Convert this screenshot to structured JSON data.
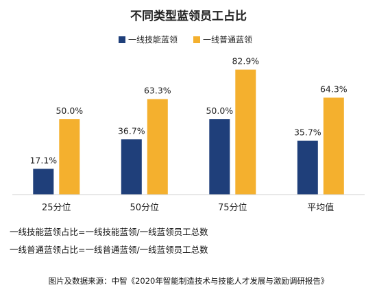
{
  "chart_data": {
    "type": "bar",
    "title": "不同类型蓝领员工占比",
    "categories": [
      "25分位",
      "50分位",
      "75分位",
      "平均值"
    ],
    "series": [
      {
        "name": "一线技能蓝领",
        "color": "#1f3f7a",
        "values": [
          17.1,
          36.7,
          50.0,
          35.7
        ],
        "labels": [
          "17.1%",
          "36.7%",
          "50.0%",
          "35.7%"
        ]
      },
      {
        "name": "一线普通蓝领",
        "color": "#f4b02e",
        "values": [
          50.0,
          63.3,
          82.9,
          64.3
        ],
        "labels": [
          "50.0%",
          "63.3%",
          "82.9%",
          "64.3%"
        ]
      }
    ],
    "ylim": [
      0,
      100
    ],
    "grid": false,
    "legend": "top-center",
    "xlabel": "",
    "ylabel": ""
  },
  "notes": [
    "一线技能蓝领占比=一线技能蓝领/一线蓝领员工总数",
    "一线普通蓝领占比=一线普通蓝领/一线蓝领员工总数"
  ],
  "source": "图片及数据来源：中智《2020年智能制造技术与技能人才发展与激励调研报告》"
}
